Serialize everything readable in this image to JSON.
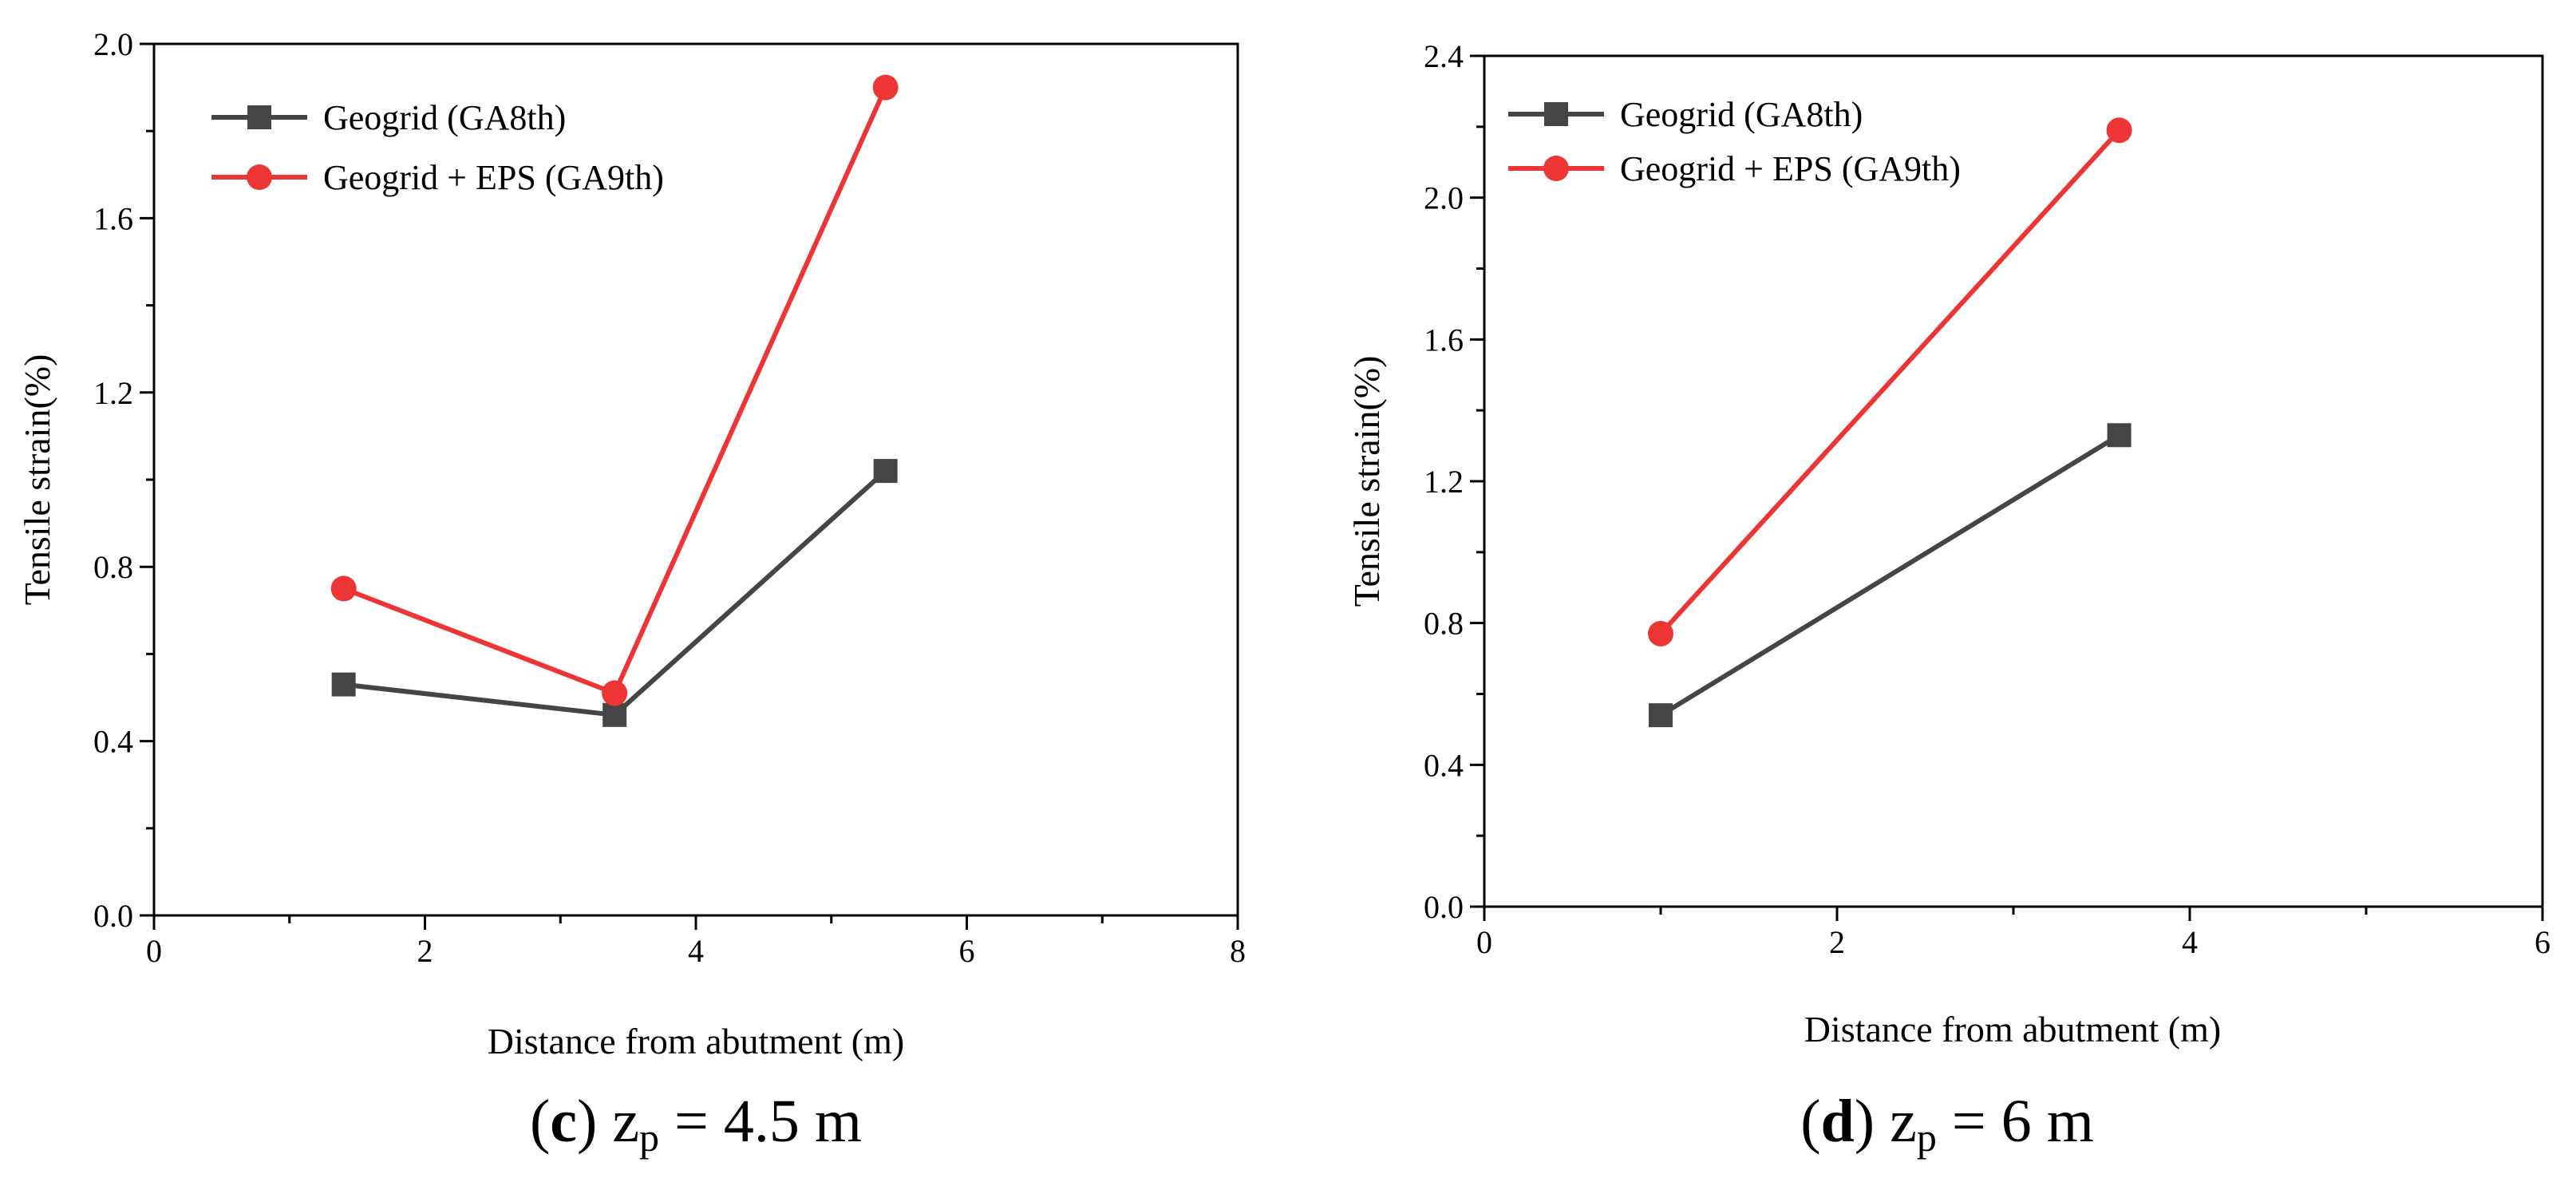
{
  "colors": {
    "series_gray": "#454545",
    "series_red": "#ee3535"
  },
  "chart_data": [
    {
      "type": "line",
      "panel": "c",
      "caption": {
        "letter": "c",
        "open": "(",
        "close": ")",
        "var": "z",
        "sub": "p",
        "rest": " = 4.5 m"
      },
      "xlabel": "Distance from abutment (m)",
      "ylabel": "Tensile strain(%)",
      "xlim": [
        0,
        8
      ],
      "ylim": [
        0,
        2.0
      ],
      "xticks": [
        0,
        2,
        4,
        6,
        8
      ],
      "xtick_labels": [
        "0",
        "2",
        "4",
        "6",
        "8"
      ],
      "yticks": [
        0,
        0.4,
        0.8,
        1.2,
        1.6,
        2.0
      ],
      "ytick_labels": [
        "0.0",
        "0.4",
        "0.8",
        "1.2",
        "1.6",
        "2.0"
      ],
      "legend_position": "top-left",
      "series": [
        {
          "name": "Geogrid (GA8th)",
          "marker": "square",
          "color": "#454545",
          "x": [
            1.4,
            3.4,
            5.4
          ],
          "y": [
            0.53,
            0.46,
            1.02
          ]
        },
        {
          "name": "Geogrid + EPS (GA9th)",
          "marker": "circle",
          "color": "#ee3535",
          "x": [
            1.4,
            3.4,
            5.4
          ],
          "y": [
            0.75,
            0.51,
            1.9
          ]
        }
      ]
    },
    {
      "type": "line",
      "panel": "d",
      "caption": {
        "letter": "d",
        "open": "(",
        "close": ")",
        "var": "z",
        "sub": "p",
        "rest": " = 6 m"
      },
      "xlabel": "Distance from abutment (m)",
      "ylabel": "Tensile strain(%)",
      "xlim": [
        0,
        6
      ],
      "ylim": [
        0,
        2.4
      ],
      "xticks": [
        0,
        2,
        4,
        6
      ],
      "xtick_labels": [
        "0",
        "2",
        "4",
        "6"
      ],
      "yticks": [
        0,
        0.4,
        0.8,
        1.2,
        1.6,
        2.0,
        2.4
      ],
      "ytick_labels": [
        "0.0",
        "0.4",
        "0.8",
        "1.2",
        "1.6",
        "2.0",
        "2.4"
      ],
      "legend_position": "top-left",
      "series": [
        {
          "name": "Geogrid (GA8th)",
          "marker": "square",
          "color": "#454545",
          "x": [
            1.0,
            3.6
          ],
          "y": [
            0.54,
            1.33
          ]
        },
        {
          "name": "Geogrid + EPS (GA9th)",
          "marker": "circle",
          "color": "#ee3535",
          "x": [
            1.0,
            3.6
          ],
          "y": [
            0.77,
            2.19
          ]
        }
      ]
    }
  ]
}
